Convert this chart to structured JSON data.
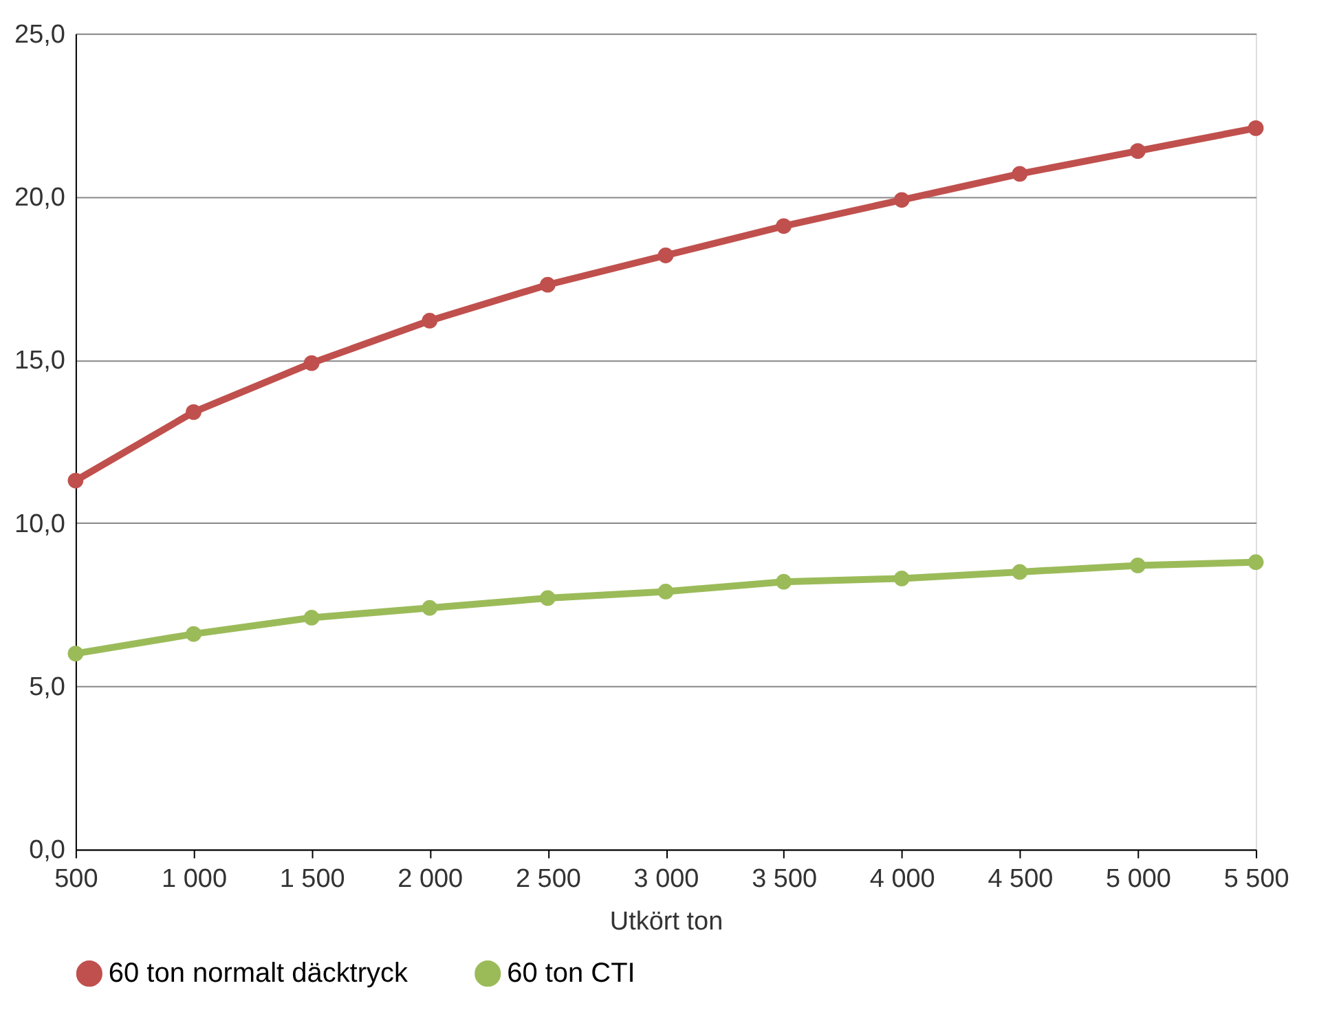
{
  "chart_data": {
    "type": "line",
    "xlabel": "Utkört ton",
    "categories": [
      "500",
      "1 000",
      "1 500",
      "2 000",
      "2 500",
      "3 000",
      "3 500",
      "4 000",
      "4 500",
      "5 000",
      "5 500"
    ],
    "series": [
      {
        "name": "60 ton normalt däcktryck",
        "color": "#c0504d",
        "values": [
          11.3,
          13.4,
          14.9,
          16.2,
          17.3,
          18.2,
          19.1,
          19.9,
          20.7,
          21.4,
          22.1
        ]
      },
      {
        "name": "60 ton CTI",
        "color": "#9bbb59",
        "values": [
          6.0,
          6.6,
          7.1,
          7.4,
          7.7,
          7.9,
          8.2,
          8.3,
          8.5,
          8.7,
          8.8
        ]
      }
    ],
    "ylim": [
      0,
      25
    ],
    "yticks": [
      {
        "value": 0,
        "label": "0,0"
      },
      {
        "value": 5,
        "label": "5,0"
      },
      {
        "value": 10,
        "label": "10,0"
      },
      {
        "value": 15,
        "label": "15,0"
      },
      {
        "value": 20,
        "label": "20,0"
      },
      {
        "value": 25,
        "label": "25,0"
      }
    ],
    "grid": "y",
    "legend": "bottom",
    "marker": "circle",
    "line_style": "solid"
  }
}
